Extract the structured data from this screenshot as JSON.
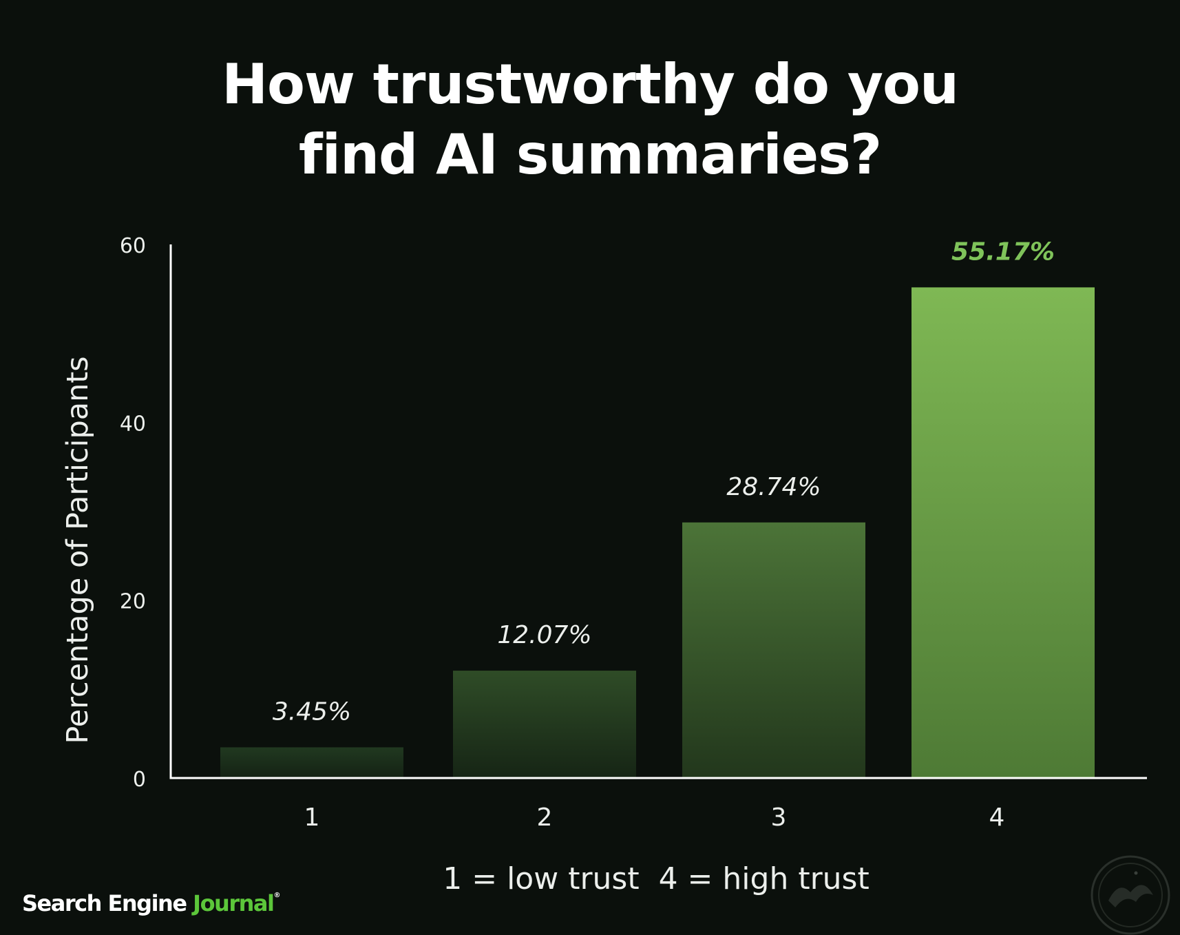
{
  "chart_data": {
    "type": "bar",
    "title": "How trustworthy do you find AI summaries?",
    "title_lines": [
      "How trustworthy do you",
      "find AI summaries?"
    ],
    "ylabel": "Percentage of Participants",
    "xlabel": "1 = low trust  4 = high trust",
    "categories": [
      "1",
      "2",
      "3",
      "4"
    ],
    "values": [
      3.45,
      12.07,
      28.74,
      55.17
    ],
    "value_labels": [
      "3.45%",
      "12.07%",
      "28.74%",
      "55.17%"
    ],
    "ylim": [
      0,
      60
    ],
    "yticks": [
      0,
      20,
      40,
      60
    ],
    "grid": false,
    "colors": {
      "bar_dark_bottom": "#142214",
      "bar_light_top": "#7fb854",
      "highlight_label": "#7fc35a",
      "label": "#ecefec",
      "axis": "#ffffff"
    }
  },
  "footer": {
    "brand_main": "Search Engine ",
    "brand_accent": "Journal",
    "brand_mark": "®",
    "seal_icon": "seal-icon"
  }
}
